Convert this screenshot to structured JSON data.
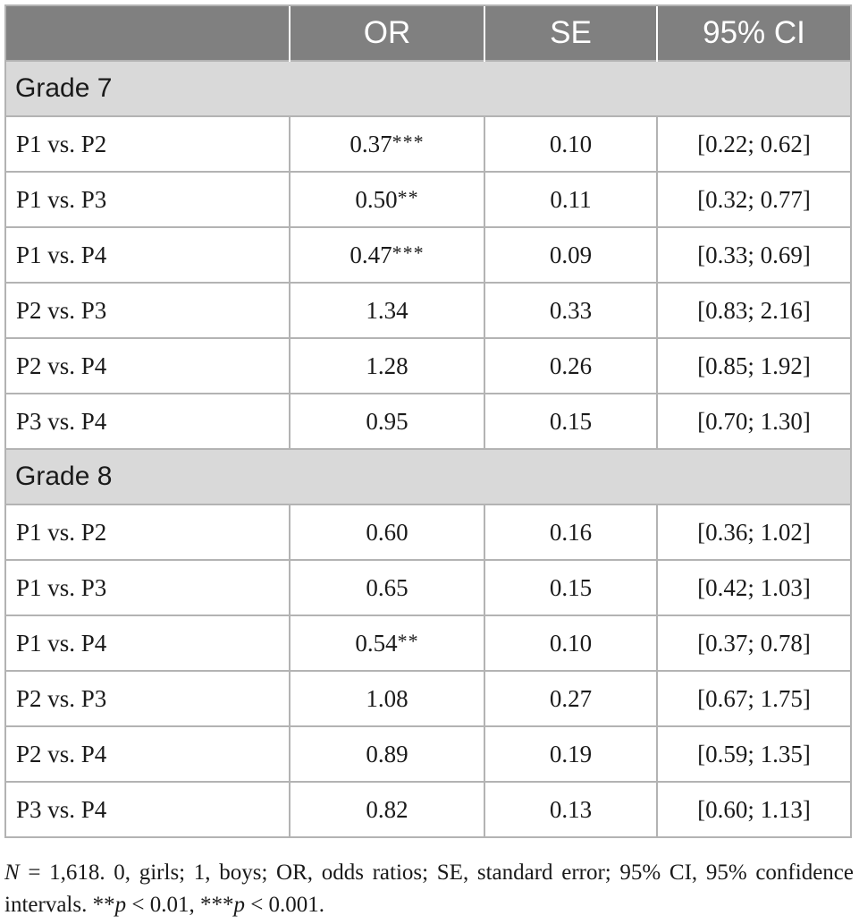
{
  "table": {
    "headers": [
      "",
      "OR",
      "SE",
      "95% CI"
    ],
    "groups": [
      {
        "label": "Grade 7",
        "rows": [
          {
            "comparison": "P1 vs. P2",
            "or": "0.37",
            "sig": "***",
            "se": "0.10",
            "ci": "[0.22; 0.62]"
          },
          {
            "comparison": "P1 vs. P3",
            "or": "0.50",
            "sig": "**",
            "se": "0.11",
            "ci": "[0.32; 0.77]"
          },
          {
            "comparison": "P1 vs. P4",
            "or": "0.47",
            "sig": "***",
            "se": "0.09",
            "ci": "[0.33; 0.69]"
          },
          {
            "comparison": "P2 vs. P3",
            "or": "1.34",
            "sig": "",
            "se": "0.33",
            "ci": "[0.83; 2.16]"
          },
          {
            "comparison": "P2 vs. P4",
            "or": "1.28",
            "sig": "",
            "se": "0.26",
            "ci": "[0.85; 1.92]"
          },
          {
            "comparison": "P3 vs. P4",
            "or": "0.95",
            "sig": "",
            "se": "0.15",
            "ci": "[0.70; 1.30]"
          }
        ]
      },
      {
        "label": "Grade 8",
        "rows": [
          {
            "comparison": "P1 vs. P2",
            "or": "0.60",
            "sig": "",
            "se": "0.16",
            "ci": "[0.36; 1.02]"
          },
          {
            "comparison": "P1 vs. P3",
            "or": "0.65",
            "sig": "",
            "se": "0.15",
            "ci": "[0.42; 1.03]"
          },
          {
            "comparison": "P1 vs. P4",
            "or": "0.54",
            "sig": "**",
            "se": "0.10",
            "ci": "[0.37; 0.78]"
          },
          {
            "comparison": "P2 vs. P3",
            "or": "1.08",
            "sig": "",
            "se": "0.27",
            "ci": "[0.67; 1.75]"
          },
          {
            "comparison": "P2 vs. P4",
            "or": "0.89",
            "sig": "",
            "se": "0.19",
            "ci": "[0.59; 1.35]"
          },
          {
            "comparison": "P3 vs. P4",
            "or": "0.82",
            "sig": "",
            "se": "0.13",
            "ci": "[0.60; 1.13]"
          }
        ]
      }
    ]
  },
  "footnote": {
    "n_label": "N",
    "text1": " = 1,618. 0, girls; 1, boys; OR, odds ratios; SE, standard error; 95% CI, 95% confidence intervals. ",
    "sig2_marks": "**",
    "p_label": "p",
    "sig2_text": " < 0.01, ",
    "sig3_marks": "***",
    "sig3_text": " < 0.001."
  },
  "colors": {
    "header_bg": "#808080",
    "group_bg": "#d9d9d9",
    "grid": "#b3b3b3"
  }
}
